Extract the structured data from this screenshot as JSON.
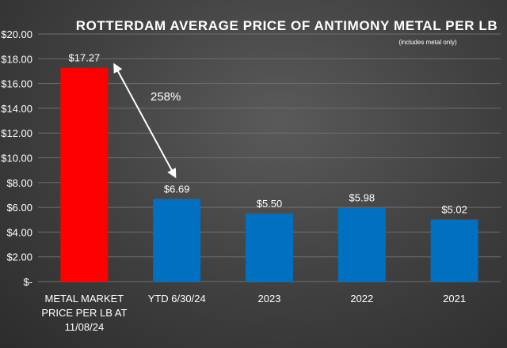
{
  "chart_data": {
    "type": "bar",
    "title": "ROTTERDAM AVERAGE PRICE OF ANTIMONY METAL PER LB",
    "subtitle": "(includes metal only)",
    "categories": [
      "METAL MARKET PRICE PER LB AT 11/08/24",
      "YTD 6/30/24",
      "2023",
      "2022",
      "2021"
    ],
    "category_lines": [
      [
        "METAL MARKET",
        "PRICE PER LB AT",
        "11/08/24"
      ],
      [
        "YTD 6/30/24"
      ],
      [
        "2023"
      ],
      [
        "2022"
      ],
      [
        "2021"
      ]
    ],
    "values": [
      17.27,
      6.69,
      5.5,
      5.98,
      5.02
    ],
    "data_labels": [
      "$17.27",
      "$6.69",
      "$5.50",
      "$5.98",
      "$5.02"
    ],
    "bar_colors": [
      "#ff0000",
      "#0070c0",
      "#0070c0",
      "#0070c0",
      "#0070c0"
    ],
    "ylim": [
      0,
      20
    ],
    "y_ticks": [
      0,
      2,
      4,
      6,
      8,
      10,
      12,
      14,
      16,
      18,
      20
    ],
    "y_tick_labels": [
      "$-",
      "$2.00",
      "$4.00",
      "$6.00",
      "$8.00",
      "$10.00",
      "$12.00",
      "$14.00",
      "$16.00",
      "$18.00",
      "$20.00"
    ],
    "grid": true,
    "annotation": {
      "text": "258%",
      "from_category": 0,
      "to_category": 1
    }
  },
  "colors": {
    "text": "#ffffff",
    "grid": "#6e6e6e"
  }
}
